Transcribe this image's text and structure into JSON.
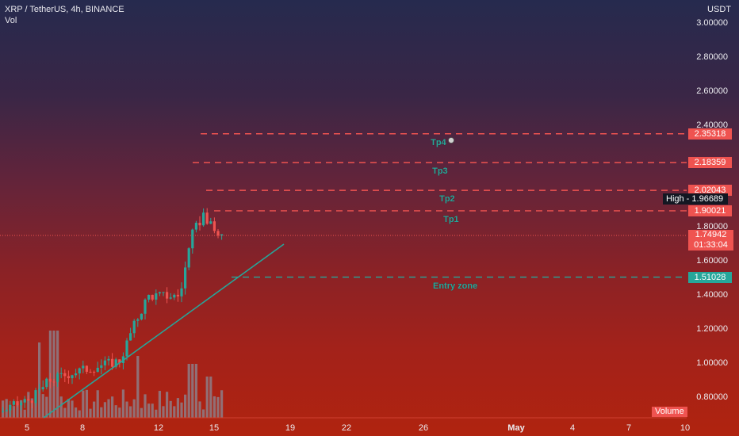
{
  "header": {
    "symbol_line": "XRP / TetherUS, 4h, BINANCE",
    "indicator": "Vol"
  },
  "price_axis": {
    "currency": "USDT",
    "ticks": [
      "3.00000",
      "2.80000",
      "2.60000",
      "2.40000",
      "1.80000",
      "1.60000",
      "1.40000",
      "1.20000",
      "1.00000",
      "0.80000"
    ]
  },
  "time_axis": {
    "ticks": [
      "5",
      "8",
      "12",
      "15",
      "19",
      "22",
      "26",
      "May",
      "4",
      "7",
      "10"
    ]
  },
  "levels": [
    {
      "name": "Tp4",
      "price_tag": "2.35318",
      "value": 2.35318,
      "x_start": 253
    },
    {
      "name": "Tp3",
      "price_tag": "2.18359",
      "value": 2.18359,
      "x_start": 243
    },
    {
      "name": "Tp2",
      "price_tag": "2.02043",
      "value": 2.02043,
      "x_start": 260
    },
    {
      "name": "Tp1",
      "price_tag": "1.90021",
      "value": 1.90021,
      "x_start": 270
    },
    {
      "name": "Entry zone",
      "price_tag": "1.51028",
      "value": 1.51028,
      "x_start": 292
    }
  ],
  "high_marker": {
    "label": "High",
    "value_text": "1.96689",
    "value": 1.96689
  },
  "last_price": {
    "value_text": "1.74942",
    "countdown": "01:33:04",
    "value": 1.74942
  },
  "volume_label": "Volume",
  "colors": {
    "up": "#26a69a",
    "down": "#ef5350",
    "target_line": "#ef5350",
    "entry_line": "#26a69a",
    "volume_bar": "#8a8a96"
  }
}
